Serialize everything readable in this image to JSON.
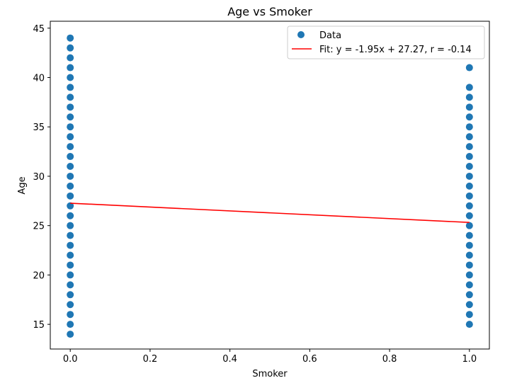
{
  "chart_data": {
    "type": "scatter",
    "title": "Age vs Smoker",
    "xlabel": "Smoker",
    "ylabel": "Age",
    "xlim": [
      -0.05,
      1.05
    ],
    "ylim": [
      12.5,
      45.7
    ],
    "x_ticks": [
      0.0,
      0.2,
      0.4,
      0.6,
      0.8,
      1.0
    ],
    "x_tick_labels": [
      "0.0",
      "0.2",
      "0.4",
      "0.6",
      "0.8",
      "1.0"
    ],
    "y_ticks": [
      15,
      20,
      25,
      30,
      35,
      40,
      45
    ],
    "y_tick_labels": [
      "15",
      "20",
      "25",
      "30",
      "35",
      "40",
      "45"
    ],
    "grid": false,
    "legend_position": "upper right",
    "series": [
      {
        "name": "Data",
        "kind": "scatter",
        "color": "#1f77b4",
        "groups": [
          {
            "x": 0,
            "y": [
              14,
              15,
              16,
              17,
              18,
              19,
              20,
              21,
              22,
              23,
              24,
              25,
              26,
              27,
              28,
              29,
              30,
              31,
              32,
              33,
              34,
              35,
              36,
              37,
              38,
              39,
              40,
              41,
              42,
              43,
              44
            ]
          },
          {
            "x": 1,
            "y": [
              15,
              16,
              17,
              18,
              19,
              20,
              21,
              22,
              23,
              24,
              25,
              26,
              27,
              28,
              29,
              30,
              31,
              32,
              33,
              34,
              35,
              36,
              37,
              38,
              39,
              41
            ]
          }
        ]
      },
      {
        "name": "Fit: y = -1.95x + 27.27, r = -0.14",
        "kind": "line",
        "color": "#ff0000",
        "slope": -1.95,
        "intercept": 27.27,
        "x_range": [
          0,
          1
        ]
      }
    ]
  }
}
